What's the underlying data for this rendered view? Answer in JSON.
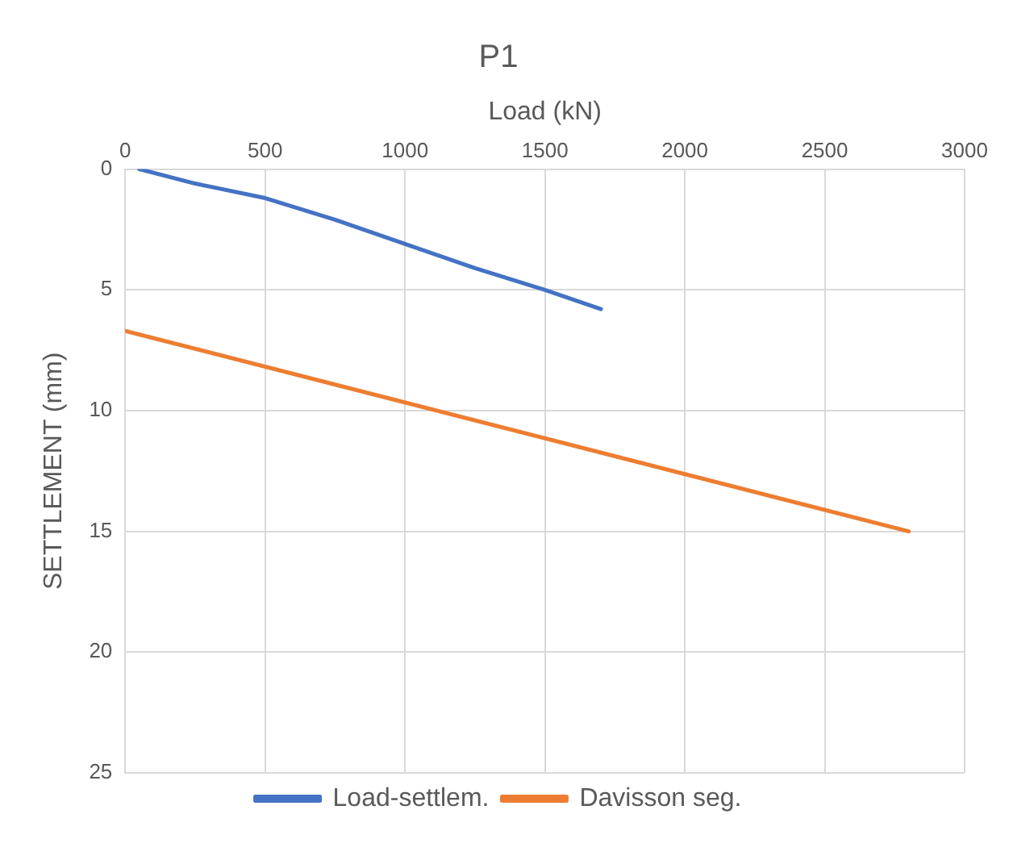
{
  "chart_data": {
    "type": "line",
    "title": "P1",
    "xlabel": "Load (kN)",
    "ylabel": "SETTLEMENT (mm)",
    "xlim": [
      0,
      3000
    ],
    "xticks": [
      0,
      500,
      1000,
      1500,
      2000,
      2500,
      3000
    ],
    "ylim": [
      25,
      0
    ],
    "yticks": [
      0,
      5,
      10,
      15,
      20,
      25
    ],
    "grid": true,
    "legend": "bottom",
    "marker": "none",
    "line_style": "solid",
    "series": [
      {
        "name": "Load-settlem.",
        "color": "#4472c4",
        "x": [
          50,
          250,
          500,
          750,
          1000,
          1250,
          1500,
          1700
        ],
        "values": [
          0,
          0.6,
          1.2,
          2.1,
          3.1,
          4.1,
          5.0,
          5.8
        ]
      },
      {
        "name": "Davisson seg.",
        "color": "#ed7d31",
        "x": [
          0,
          2800
        ],
        "values": [
          6.7,
          15.0
        ]
      }
    ]
  }
}
